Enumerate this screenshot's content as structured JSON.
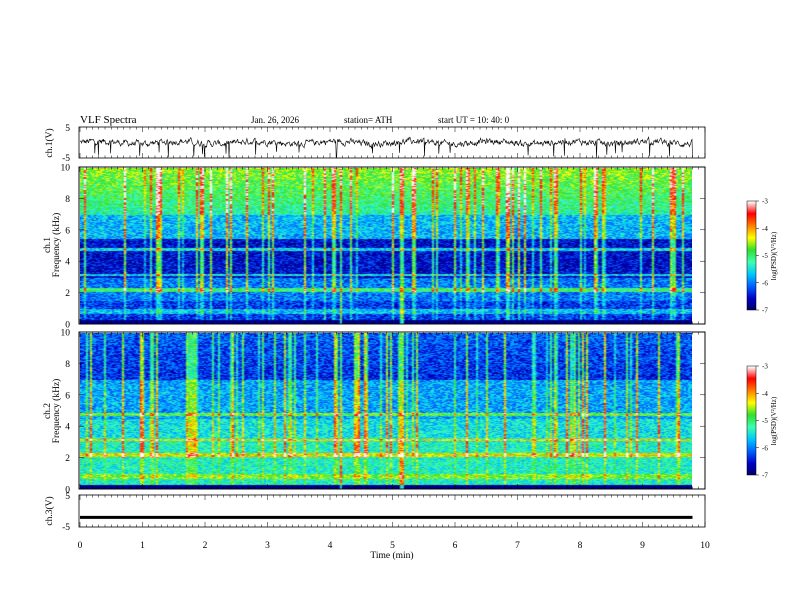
{
  "header": {
    "title": "VLF  Spectra",
    "date": "Jan. 26, 2026",
    "station": "station= ATH",
    "start": "start  UT  =    10: 40: 0"
  },
  "chart_data": [
    {
      "type": "line",
      "id": "ch1",
      "ylabel": "ch.1(V)",
      "ylim": [
        -5,
        5
      ],
      "yticks": [
        "5",
        "-5"
      ],
      "baseline": 0,
      "description_shape": "noisy trace near 0 V with downward spikes"
    },
    {
      "type": "heatmap",
      "id": "ch1spec",
      "ylabel": "ch.1\nFrequency (kHz)",
      "ylabel_top": "ch.1",
      "ylabel_bottom": "Frequency  (kHz)",
      "ylim": [
        0,
        10
      ],
      "yticks": [
        "0",
        "2",
        "4",
        "6",
        "8",
        "10"
      ],
      "colorbar": {
        "label": "log(PSD)(V²/Hz)",
        "ticks": [
          "-3",
          "-4",
          "-5",
          "-6",
          "-7"
        ],
        "range": [
          -7,
          -3
        ]
      }
    },
    {
      "type": "heatmap",
      "id": "ch2spec",
      "ylabel_top": "ch.2",
      "ylabel_bottom": "Frequency  (kHz)",
      "ylim": [
        0,
        10
      ],
      "yticks": [
        "0",
        "2",
        "4",
        "6",
        "8",
        "10"
      ],
      "colorbar": {
        "label": "log(PSD)(V²/Hz)",
        "ticks": [
          "-3",
          "-4",
          "-5",
          "-6",
          "-7"
        ],
        "range": [
          -7,
          -3
        ]
      }
    },
    {
      "type": "line",
      "id": "ch3",
      "ylabel": "ch.3(V)",
      "ylim": [
        -5,
        5
      ],
      "yticks": [
        "5",
        "-5"
      ],
      "baseline": -2
    }
  ],
  "xaxis": {
    "label": "Time  (min)",
    "range": [
      0,
      10
    ],
    "ticks": [
      "0",
      "1",
      "2",
      "3",
      "4",
      "5",
      "6",
      "7",
      "8",
      "9",
      "10"
    ],
    "data_end": 9.8
  },
  "colors": {
    "jet": [
      "#000060",
      "#0000c8",
      "#0060ff",
      "#00c8ff",
      "#40ffb0",
      "#30e030",
      "#ffff00",
      "#ff8000",
      "#ff0000",
      "#ffffff"
    ]
  }
}
